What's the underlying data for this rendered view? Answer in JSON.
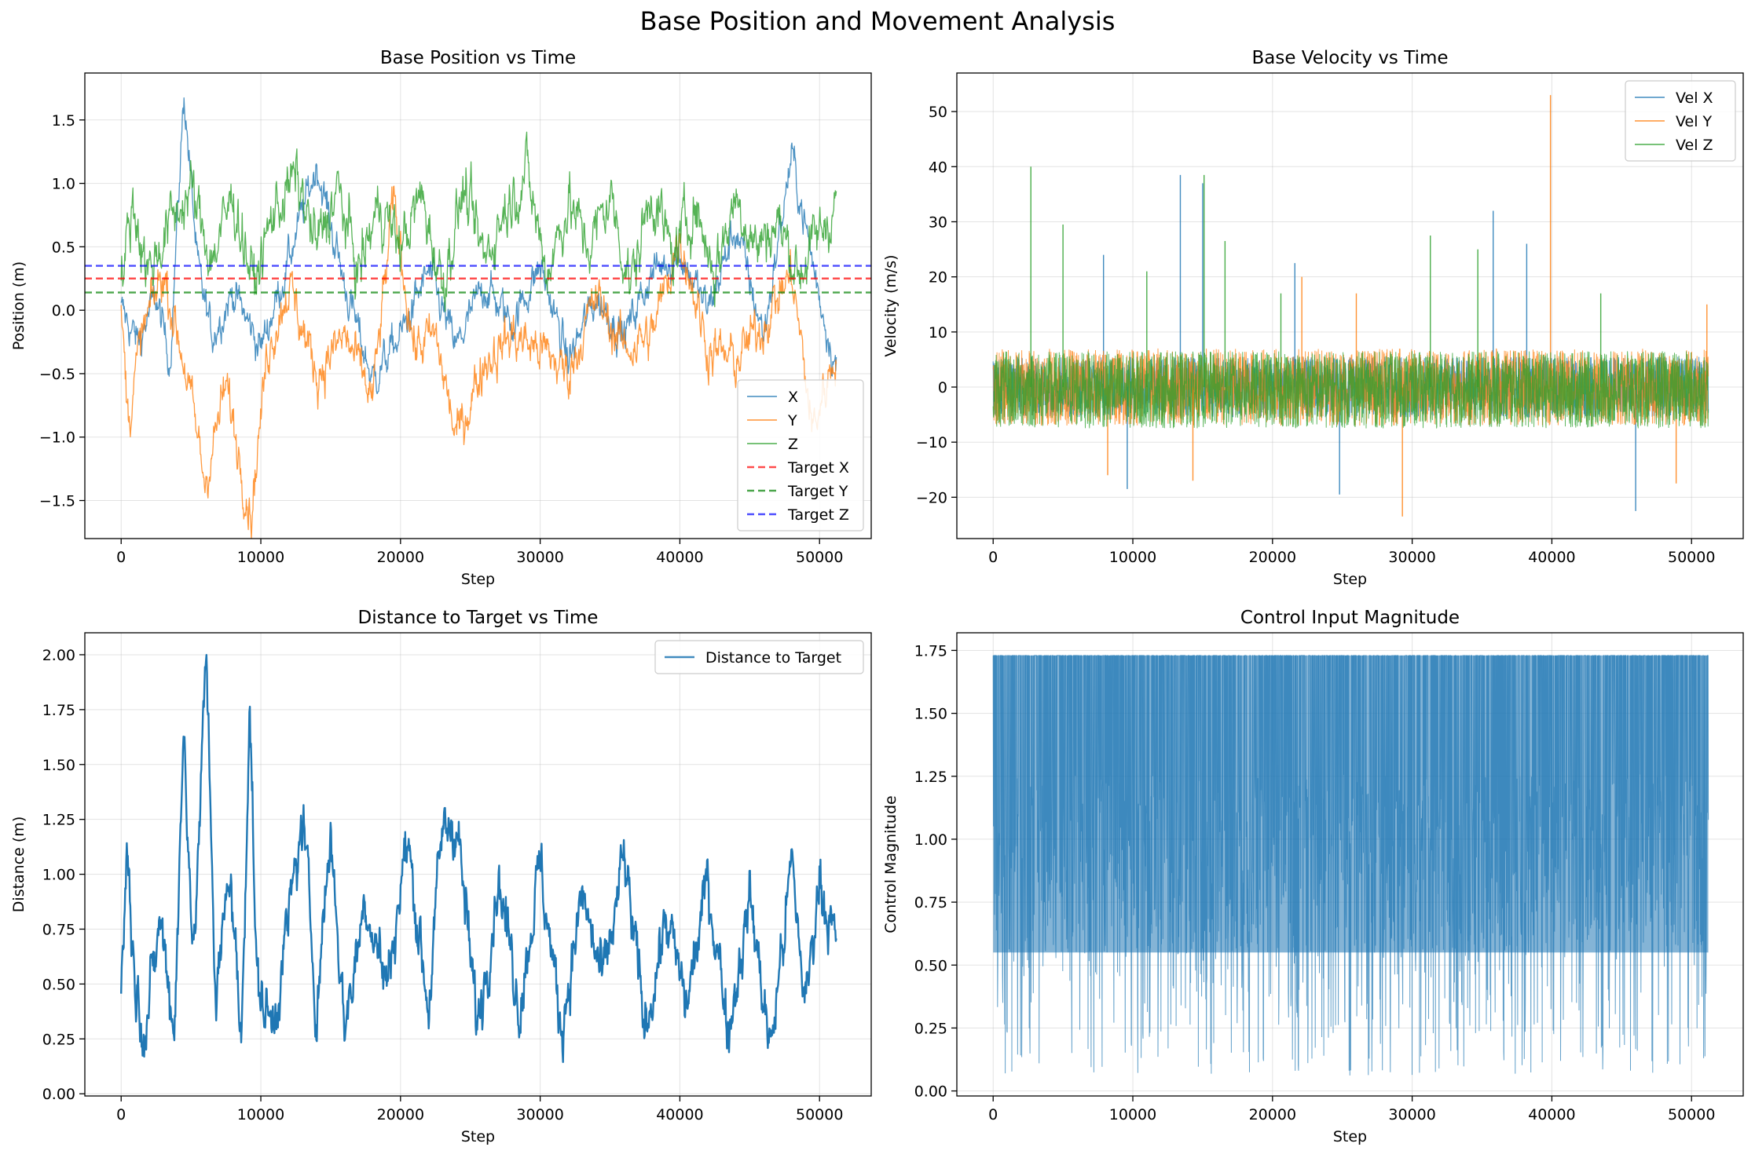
{
  "suptitle": "Base Position and Movement Analysis",
  "chart_data": [
    {
      "type": "line",
      "title": "Base Position vs Time",
      "xlabel": "Step",
      "ylabel": "Position (m)",
      "xlim": [
        -2600,
        53700
      ],
      "ylim": [
        -1.8,
        1.87
      ],
      "xticks": [
        0,
        10000,
        20000,
        30000,
        40000,
        50000
      ],
      "yticks": [
        -1.5,
        -1.0,
        -0.5,
        0.0,
        0.5,
        1.0,
        1.5
      ],
      "ytick_labels": [
        "−1.5",
        "−1.0",
        "−0.5",
        "0.0",
        "0.5",
        "1.0",
        "1.5"
      ],
      "grid": true,
      "legend": "lower-right",
      "series": [
        {
          "name": "X",
          "color": "#1f77b4",
          "x": [
            0,
            1200,
            2500,
            3500,
            4500,
            5500,
            6500,
            8000,
            10000,
            12000,
            14000,
            16000,
            18000,
            20000,
            22000,
            24000,
            26000,
            28000,
            30000,
            32000,
            34000,
            36000,
            38000,
            40000,
            42000,
            44000,
            46000,
            48000,
            50000,
            51200
          ],
          "y": [
            0.0,
            -0.25,
            0.1,
            -0.4,
            1.72,
            0.3,
            -0.2,
            0.15,
            -0.3,
            0.4,
            1.15,
            0.2,
            -0.55,
            -0.2,
            0.3,
            -0.3,
            0.2,
            -0.1,
            0.35,
            -0.4,
            0.1,
            -0.2,
            0.3,
            0.45,
            0.0,
            0.65,
            -0.2,
            1.22,
            0.1,
            -0.45
          ],
          "noise": 0.2,
          "lw": 1.3
        },
        {
          "name": "Y",
          "color": "#ff7f0e",
          "x": [
            0,
            500,
            1500,
            3000,
            4500,
            6000,
            7500,
            9300,
            10500,
            12000,
            14000,
            16000,
            18000,
            19500,
            21000,
            22500,
            24000,
            26000,
            28000,
            30000,
            32000,
            34000,
            36000,
            38000,
            40000,
            42000,
            44000,
            46000,
            48000,
            49500,
            51200
          ],
          "y": [
            0.0,
            -0.85,
            -0.2,
            0.3,
            -0.4,
            -1.35,
            -0.6,
            -1.6,
            -0.3,
            0.2,
            -0.5,
            -0.2,
            -0.7,
            0.85,
            -0.3,
            -0.2,
            -1.02,
            -0.4,
            -0.2,
            -0.3,
            -0.5,
            0.1,
            -0.3,
            -0.2,
            0.6,
            -0.3,
            -0.4,
            -0.1,
            0.3,
            -0.95,
            -0.3
          ],
          "noise": 0.25,
          "lw": 1.3
        },
        {
          "name": "Z",
          "color": "#2ca02c",
          "x": [
            0,
            800,
            2000,
            3500,
            5000,
            6500,
            8000,
            9500,
            11000,
            12500,
            14000,
            15500,
            17000,
            18500,
            20000,
            21500,
            23000,
            24500,
            26000,
            27500,
            29000,
            30500,
            32000,
            33500,
            35000,
            36500,
            38000,
            39500,
            41000,
            42500,
            44000,
            45500,
            47000,
            48500,
            50000,
            51200
          ],
          "y": [
            0.2,
            0.85,
            0.3,
            0.7,
            0.95,
            0.4,
            0.9,
            0.2,
            0.8,
            1.05,
            0.5,
            0.95,
            0.3,
            0.85,
            0.5,
            0.9,
            0.2,
            0.95,
            0.4,
            0.8,
            1.1,
            0.3,
            0.85,
            0.5,
            0.9,
            0.2,
            0.95,
            0.4,
            0.85,
            0.3,
            0.9,
            0.5,
            0.7,
            0.3,
            0.6,
            0.85
          ],
          "noise": 0.3,
          "lw": 1.3
        },
        {
          "name": "Target X",
          "color": "#ff0000",
          "hline": 0.25,
          "dash": true
        },
        {
          "name": "Target Y",
          "color": "#008000",
          "hline": 0.14,
          "dash": true
        },
        {
          "name": "Target Z",
          "color": "#0000ff",
          "hline": 0.35,
          "dash": true
        }
      ]
    },
    {
      "type": "line",
      "title": "Base Velocity vs Time",
      "xlabel": "Step",
      "ylabel": "Velocity (m/s)",
      "xlim": [
        -2600,
        53700
      ],
      "ylim": [
        -27.5,
        57
      ],
      "xticks": [
        0,
        10000,
        20000,
        30000,
        40000,
        50000
      ],
      "yticks": [
        -20,
        -10,
        0,
        10,
        20,
        30,
        40,
        50
      ],
      "ytick_labels": [
        "−20",
        "−10",
        "0",
        "10",
        "20",
        "30",
        "40",
        "50"
      ],
      "grid": true,
      "legend": "top-right",
      "series": [
        {
          "name": "Vel X",
          "color": "#1f77b4",
          "band": [
            -5.5,
            5.5
          ],
          "spikes": [
            [
              13400,
              38.5
            ],
            [
              9600,
              -18.5
            ],
            [
              15000,
              37
            ],
            [
              21600,
              22.5
            ],
            [
              24800,
              -19.5
            ],
            [
              35800,
              32
            ],
            [
              38200,
              26
            ],
            [
              46000,
              -22.5
            ],
            [
              7900,
              24
            ]
          ],
          "lw": 1
        },
        {
          "name": "Vel Y",
          "color": "#ff7f0e",
          "band": [
            -7,
            7
          ],
          "spikes": [
            [
              39900,
              53
            ],
            [
              29300,
              -23.5
            ],
            [
              22100,
              20
            ],
            [
              26000,
              17
            ],
            [
              14300,
              -17
            ],
            [
              8200,
              -16
            ],
            [
              48900,
              -17.5
            ],
            [
              51100,
              15
            ]
          ],
          "lw": 1
        },
        {
          "name": "Vel Z",
          "color": "#2ca02c",
          "band": [
            -7.5,
            6.5
          ],
          "spikes": [
            [
              2700,
              40
            ],
            [
              5000,
              29.5
            ],
            [
              15100,
              38.5
            ],
            [
              16600,
              26.5
            ],
            [
              31300,
              27.5
            ],
            [
              34700,
              25
            ],
            [
              11000,
              21
            ],
            [
              20600,
              17
            ],
            [
              43500,
              17
            ]
          ],
          "lw": 1
        }
      ]
    },
    {
      "type": "line",
      "title": "Distance to Target vs Time",
      "xlabel": "Step",
      "ylabel": "Distance (m)",
      "xlim": [
        -2600,
        53700
      ],
      "ylim": [
        -0.01,
        2.1
      ],
      "xticks": [
        0,
        10000,
        20000,
        30000,
        40000,
        50000
      ],
      "yticks": [
        0.0,
        0.25,
        0.5,
        0.75,
        1.0,
        1.25,
        1.5,
        1.75,
        2.0
      ],
      "ytick_labels": [
        "0.00",
        "0.25",
        "0.50",
        "0.75",
        "1.00",
        "1.25",
        "1.50",
        "1.75",
        "2.00"
      ],
      "grid": true,
      "legend": "top-right",
      "series": [
        {
          "name": "Distance to Target",
          "color": "#1f77b4",
          "x": [
            0,
            400,
            1000,
            1800,
            2800,
            3800,
            4500,
            5200,
            6100,
            6800,
            7800,
            8600,
            9200,
            9700,
            10800,
            12000,
            13000,
            14000,
            15000,
            16000,
            17500,
            19000,
            20500,
            22000,
            23000,
            24000,
            25500,
            27000,
            28500,
            30000,
            31500,
            33000,
            34500,
            36000,
            37500,
            39000,
            40500,
            42000,
            43500,
            45000,
            46500,
            48000,
            49000,
            50000,
            51200
          ],
          "y": [
            0.4,
            1.15,
            0.5,
            0.3,
            0.8,
            0.3,
            1.66,
            0.6,
            2.0,
            0.4,
            1.05,
            0.2,
            1.83,
            0.5,
            0.3,
            0.8,
            1.25,
            0.4,
            1.2,
            0.3,
            0.9,
            0.5,
            1.15,
            0.4,
            1.2,
            1.25,
            0.3,
            1.0,
            0.4,
            1.05,
            0.3,
            0.9,
            0.5,
            1.07,
            0.3,
            0.8,
            0.4,
            0.97,
            0.3,
            0.9,
            0.2,
            1.05,
            0.4,
            1.0,
            0.65
          ],
          "noise": 0.18,
          "lw": 2.4
        }
      ]
    },
    {
      "type": "area",
      "title": "Control Input Magnitude",
      "xlabel": "Step",
      "ylabel": "Control Magnitude",
      "xlim": [
        -2600,
        53700
      ],
      "ylim": [
        -0.02,
        1.82
      ],
      "xticks": [
        0,
        10000,
        20000,
        30000,
        40000,
        50000
      ],
      "yticks": [
        0.0,
        0.25,
        0.5,
        0.75,
        1.0,
        1.25,
        1.5,
        1.75
      ],
      "ytick_labels": [
        "0.00",
        "0.25",
        "0.50",
        "0.75",
        "1.00",
        "1.25",
        "1.50",
        "1.75"
      ],
      "grid": true,
      "series": [
        {
          "name": "",
          "color": "#1f77b4",
          "band": [
            0.55,
            1.73
          ],
          "min": 0.06,
          "max": 1.73,
          "lw": 1
        }
      ]
    }
  ]
}
